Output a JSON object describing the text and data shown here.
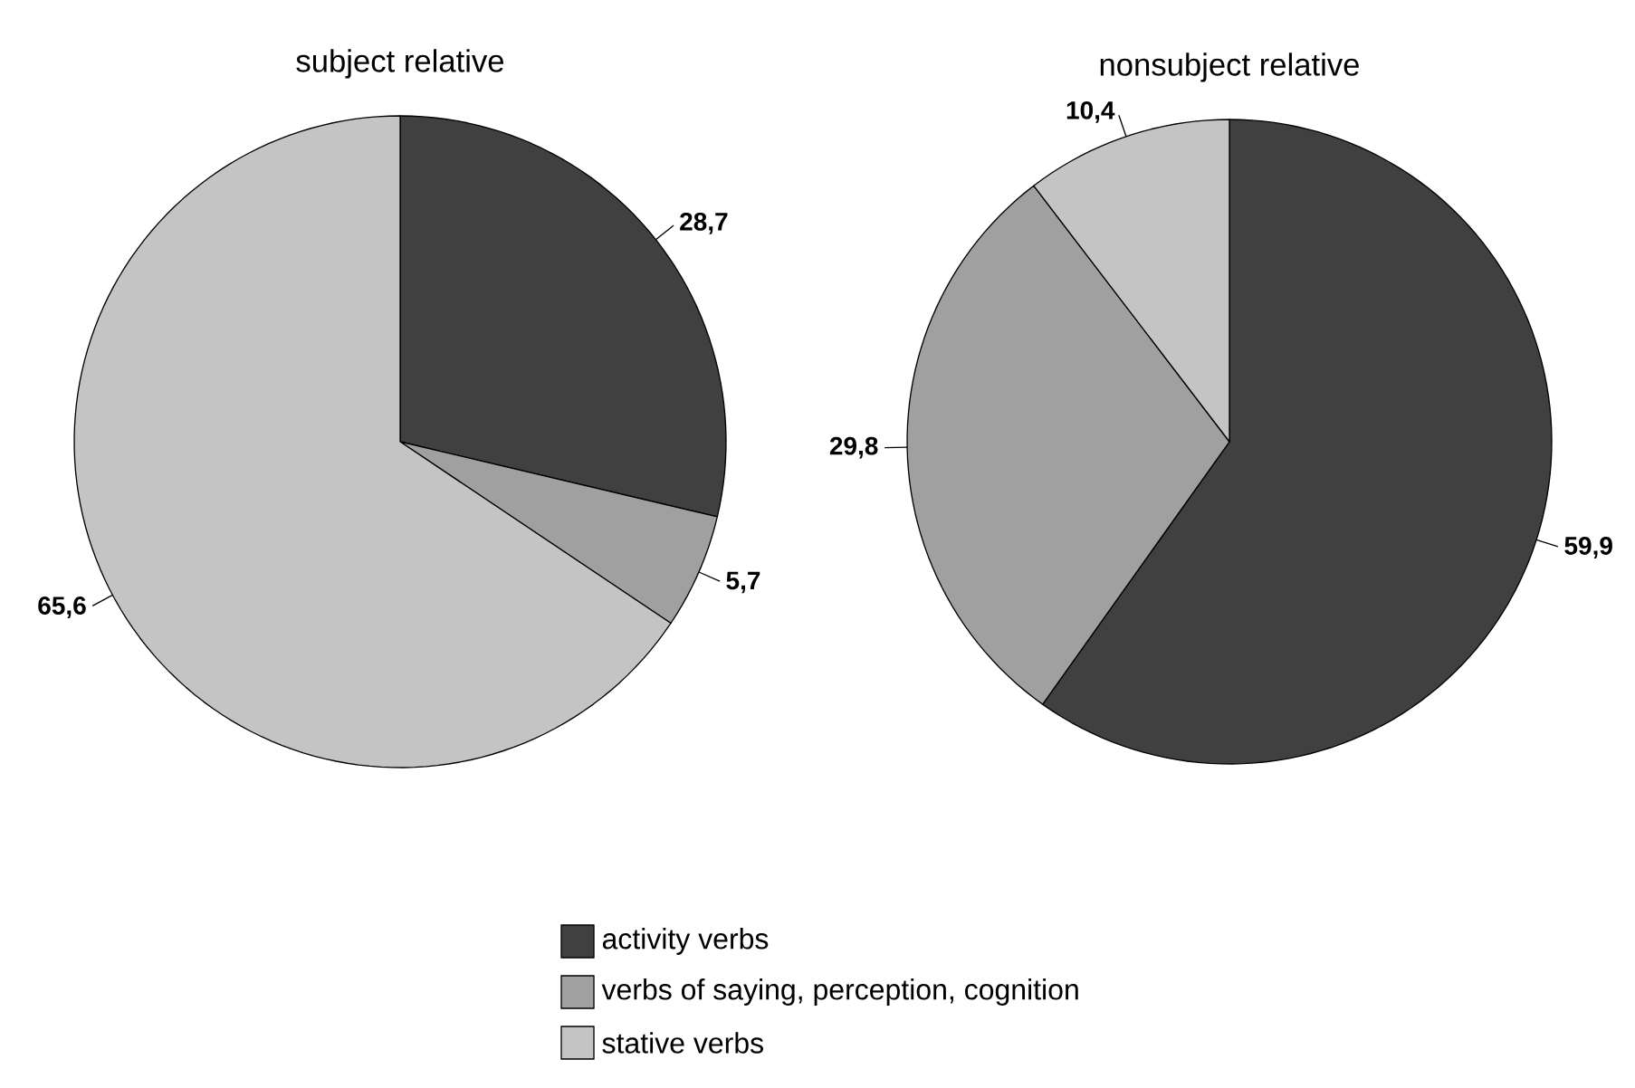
{
  "chart_data": [
    {
      "type": "pie",
      "title": "subject relative",
      "categories": [
        "activity verbs",
        "verbs of saying, perception, cognition",
        "stative verbs"
      ],
      "values": [
        28.7,
        5.7,
        65.6
      ],
      "value_labels": [
        "28,7",
        "5,7",
        "65,6"
      ],
      "colors": [
        "#404040",
        "#a0a0a0",
        "#c4c4c4"
      ],
      "legend": "bottom"
    },
    {
      "type": "pie",
      "title": "nonsubject relative",
      "values": [
        59.9,
        29.8,
        10.4
      ],
      "value_labels": [
        "59,9",
        "29,8",
        "10,4"
      ],
      "colors": [
        "#404040",
        "#a0a0a0",
        "#c4c4c4"
      ]
    }
  ]
}
